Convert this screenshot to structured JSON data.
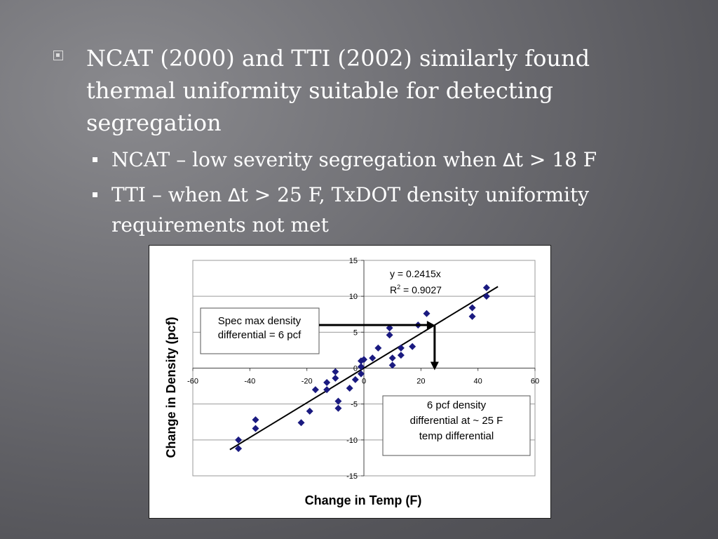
{
  "slide": {
    "bullet_main": "NCAT (2000) and TTI (2002) similarly found thermal uniformity suitable for detecting segregation",
    "sub1": {
      "prefix": "NCAT – low severity segregation when ",
      "delta": "∆",
      "suffix": "t > 18 F"
    },
    "sub2": {
      "prefix": "TTI – when ",
      "delta": "∆",
      "suffix": "t > 25 F, TxDOT density uniformity requirements not met"
    }
  },
  "chart_data": {
    "type": "scatter",
    "xlabel": "Change in Temp (F)",
    "ylabel": "Change in Density (pcf)",
    "xlim": [
      -60,
      60
    ],
    "ylim": [
      -15,
      15
    ],
    "x_ticks": [
      -60,
      -40,
      -20,
      0,
      20,
      40,
      60
    ],
    "y_ticks": [
      -15,
      -10,
      -5,
      0,
      5,
      10,
      15
    ],
    "x_tick_labels": [
      "-60",
      "-40",
      "-20",
      "0",
      "20",
      "40",
      "60"
    ],
    "y_tick_labels": [
      "-15",
      "-10",
      "-5",
      "0",
      "5",
      "10",
      "15"
    ],
    "grid": "horizontal",
    "marker_color": "#1a1a80",
    "series": [
      {
        "points": [
          [
            -44,
            -10.0
          ],
          [
            -44,
            -11.2
          ],
          [
            -38,
            -7.2
          ],
          [
            -38,
            -8.4
          ],
          [
            -22,
            -7.6
          ],
          [
            -19,
            -6.0
          ],
          [
            -17,
            -3.0
          ],
          [
            -13,
            -2.0
          ],
          [
            -13,
            -3.0
          ],
          [
            -10,
            -0.5
          ],
          [
            -10,
            -1.4
          ],
          [
            -9,
            -4.6
          ],
          [
            -9,
            -5.6
          ],
          [
            -5,
            -2.8
          ],
          [
            -3,
            -1.6
          ],
          [
            -1,
            1.0
          ],
          [
            -1,
            0.2
          ],
          [
            -1,
            -0.8
          ],
          [
            0,
            1.2
          ],
          [
            3,
            1.4
          ],
          [
            5,
            2.8
          ],
          [
            9,
            5.6
          ],
          [
            9,
            4.6
          ],
          [
            10,
            0.4
          ],
          [
            10,
            1.4
          ],
          [
            13,
            2.8
          ],
          [
            13,
            1.8
          ],
          [
            17,
            3.0
          ],
          [
            19,
            6.0
          ],
          [
            22,
            7.6
          ],
          [
            38,
            8.4
          ],
          [
            38,
            7.2
          ],
          [
            43,
            11.2
          ],
          [
            43,
            10.0
          ]
        ]
      }
    ],
    "trendline": {
      "slope": 0.2415,
      "x_range": [
        -47,
        47
      ],
      "color": "#000000"
    },
    "equation_label": {
      "line1": "y = 0.2415x",
      "line2_base": "R",
      "line2_sup": "2",
      "line2_rest": " = 0.9027"
    },
    "annotations": [
      {
        "line1": "Spec max density",
        "line2": "differential = 6 pcf"
      },
      {
        "line1": "6 pcf density",
        "line2": "differential at ~ 25 F",
        "line3": "temp differential"
      }
    ],
    "arrow_point": {
      "x": 24.8,
      "y": 6
    }
  }
}
